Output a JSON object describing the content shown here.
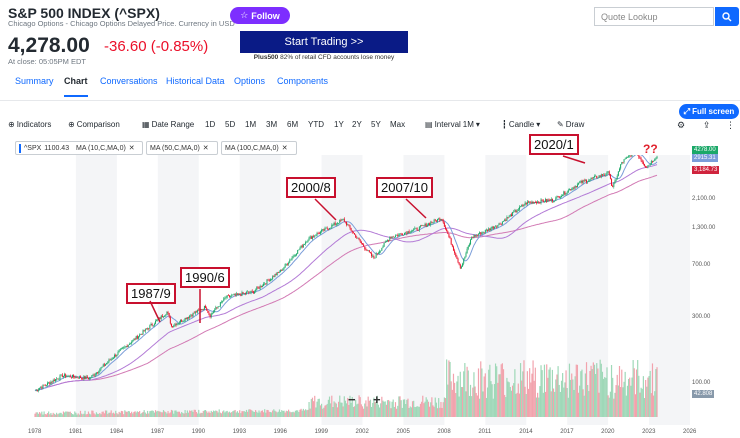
{
  "header": {
    "title": "S&P 500 INDEX (^SPX)",
    "subtitle": "Chicago Options - Chicago Options Delayed Price. Currency in USD",
    "follow_label": "Follow",
    "search_placeholder": "Quote Lookup"
  },
  "quote": {
    "price": "4,278.00",
    "change": "-36.60",
    "change_pct": "(-0.85%)",
    "close_note": "At close: 05:05PM EDT"
  },
  "ad": {
    "button_label": "Start Trading >>",
    "brand": "Plus500",
    "disclaimer": "82% of retail CFD accounts lose money"
  },
  "tabs": [
    "Summary",
    "Chart",
    "Conversations",
    "Historical Data",
    "Options",
    "Components"
  ],
  "active_tab": "Chart",
  "toolbar": {
    "fullscreen_label": "Full screen",
    "indicators_label": "Indicators",
    "comparison_label": "Comparison",
    "date_range_label": "Date Range",
    "ranges": [
      "1D",
      "5D",
      "1M",
      "3M",
      "6M",
      "YTD",
      "1Y",
      "2Y",
      "5Y",
      "Max"
    ],
    "interval_label": "Interval",
    "interval_value": "1M",
    "candle_label": "Candle",
    "draw_label": "Draw"
  },
  "legend": {
    "symbol": "^SPX",
    "symbol_value": "1100.43",
    "ma1": "MA (10,C,MA,0)",
    "ma2": "MA (50,C,MA,0)",
    "ma3": "MA (100,C,MA,0)"
  },
  "annotations": [
    "1987/9",
    "1990/6",
    "2000/8",
    "2007/10",
    "2020/1",
    "??"
  ],
  "zoom": {
    "minus": "−",
    "plus": "+"
  },
  "colors": {
    "accent": "#0f69ff",
    "follow": "#7d2eff",
    "down": "#eb0f29",
    "up": "#1ba868",
    "annotation": "#c8102e",
    "ma_blue": "#7b9dd9",
    "ma_pink": "#d27ab4"
  },
  "chart_data": {
    "type": "line",
    "title": "S&P 500 INDEX (^SPX) monthly",
    "scale": "log",
    "x_ticks": [
      "1978",
      "1981",
      "1984",
      "1987",
      "1990",
      "1993",
      "1996",
      "1999",
      "2002",
      "2005",
      "2008",
      "2011",
      "2014",
      "2017",
      "2020",
      "2023",
      "2026"
    ],
    "y_ticks": [
      "2,100.00",
      "1,300.00",
      "700.00",
      "300.00",
      "100.00"
    ],
    "y_tag_values": [
      "4278.00",
      "2915.31",
      "3,184.73",
      "42.808"
    ],
    "x": [
      1978,
      1980,
      1982,
      1984,
      1986,
      1987.7,
      1988,
      1990.5,
      1990.8,
      1992,
      1994,
      1996,
      1998,
      2000.6,
      2001.5,
      2002.8,
      2004,
      2006,
      2007.8,
      2009.2,
      2010,
      2012,
      2014,
      2016,
      2018,
      2020.1,
      2020.3,
      2021,
      2022,
      2022.8,
      2023.5
    ],
    "y": [
      90,
      115,
      110,
      165,
      240,
      330,
      260,
      360,
      310,
      420,
      460,
      650,
      1100,
      1520,
      1150,
      800,
      1130,
      1300,
      1560,
      680,
      1130,
      1400,
      2000,
      2100,
      2800,
      3300,
      2500,
      3900,
      4700,
      3600,
      4278
    ],
    "series": [
      {
        "name": "^SPX",
        "values": "price"
      },
      {
        "name": "MA (10,C,MA,0)"
      },
      {
        "name": "MA (50,C,MA,0)"
      },
      {
        "name": "MA (100,C,MA,0)"
      }
    ],
    "volume": "monthly volume bars, rising sharply after 2008"
  }
}
